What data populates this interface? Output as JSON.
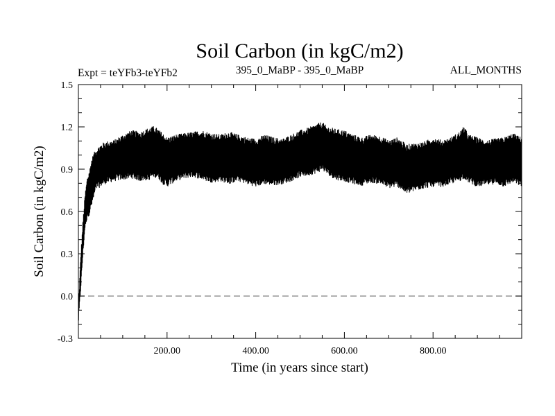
{
  "chart_data": {
    "type": "line",
    "title": "Soil Carbon (in kgC/m2)",
    "subtitle_left": "Expt = teYFb3-teYFb2",
    "subtitle_center": "395_0_MaBP - 395_0_MaBP",
    "subtitle_right": "ALL_MONTHS",
    "xlabel": "Time (in years since start)",
    "ylabel": "Soil Carbon (in kgC/m2)",
    "xlim": [
      0,
      1000
    ],
    "ylim": [
      -0.3,
      1.5
    ],
    "xticks": [
      200,
      400,
      600,
      800
    ],
    "xtick_labels": [
      "200.00",
      "400.00",
      "600.00",
      "800.00"
    ],
    "yticks": [
      -0.3,
      0.0,
      0.3,
      0.6,
      0.9,
      1.2,
      1.5
    ],
    "ytick_labels": [
      "-0.3",
      "0.0",
      "0.3",
      "0.6",
      "0.9",
      "1.2",
      "1.5"
    ],
    "reference_line": {
      "y": 0.0,
      "style": "dashed",
      "color": "#808080"
    },
    "series": [
      {
        "name": "Soil Carbon",
        "color": "#000000",
        "x": [
          0,
          5,
          10,
          15,
          20,
          25,
          30,
          35,
          40,
          50,
          60,
          80,
          100,
          120,
          140,
          160,
          170,
          180,
          190,
          200,
          220,
          240,
          260,
          280,
          300,
          320,
          340,
          360,
          380,
          400,
          420,
          440,
          460,
          480,
          500,
          520,
          540,
          550,
          560,
          580,
          600,
          620,
          640,
          660,
          680,
          700,
          720,
          740,
          760,
          780,
          800,
          820,
          840,
          860,
          870,
          880,
          900,
          920,
          940,
          960,
          980,
          1000
        ],
        "upper": [
          -0.1,
          0.25,
          0.5,
          0.7,
          0.82,
          0.87,
          0.95,
          0.99,
          1.02,
          1.05,
          1.07,
          1.08,
          1.12,
          1.15,
          1.14,
          1.17,
          1.18,
          1.16,
          1.13,
          1.1,
          1.12,
          1.13,
          1.14,
          1.15,
          1.13,
          1.12,
          1.14,
          1.12,
          1.1,
          1.09,
          1.12,
          1.1,
          1.09,
          1.12,
          1.15,
          1.17,
          1.2,
          1.21,
          1.18,
          1.16,
          1.15,
          1.12,
          1.1,
          1.12,
          1.11,
          1.08,
          1.1,
          1.05,
          1.06,
          1.07,
          1.1,
          1.08,
          1.1,
          1.14,
          1.18,
          1.12,
          1.1,
          1.08,
          1.09,
          1.1,
          1.13,
          1.1
        ],
        "lower": [
          -0.18,
          0.05,
          0.3,
          0.5,
          0.58,
          0.6,
          0.66,
          0.72,
          0.78,
          0.8,
          0.82,
          0.84,
          0.85,
          0.86,
          0.84,
          0.85,
          0.87,
          0.86,
          0.82,
          0.8,
          0.84,
          0.86,
          0.87,
          0.85,
          0.83,
          0.84,
          0.82,
          0.84,
          0.82,
          0.8,
          0.82,
          0.81,
          0.82,
          0.84,
          0.87,
          0.88,
          0.9,
          0.92,
          0.89,
          0.85,
          0.84,
          0.82,
          0.81,
          0.83,
          0.82,
          0.79,
          0.8,
          0.75,
          0.77,
          0.79,
          0.8,
          0.8,
          0.82,
          0.84,
          0.86,
          0.83,
          0.8,
          0.81,
          0.82,
          0.8,
          0.83,
          0.8
        ]
      }
    ]
  }
}
